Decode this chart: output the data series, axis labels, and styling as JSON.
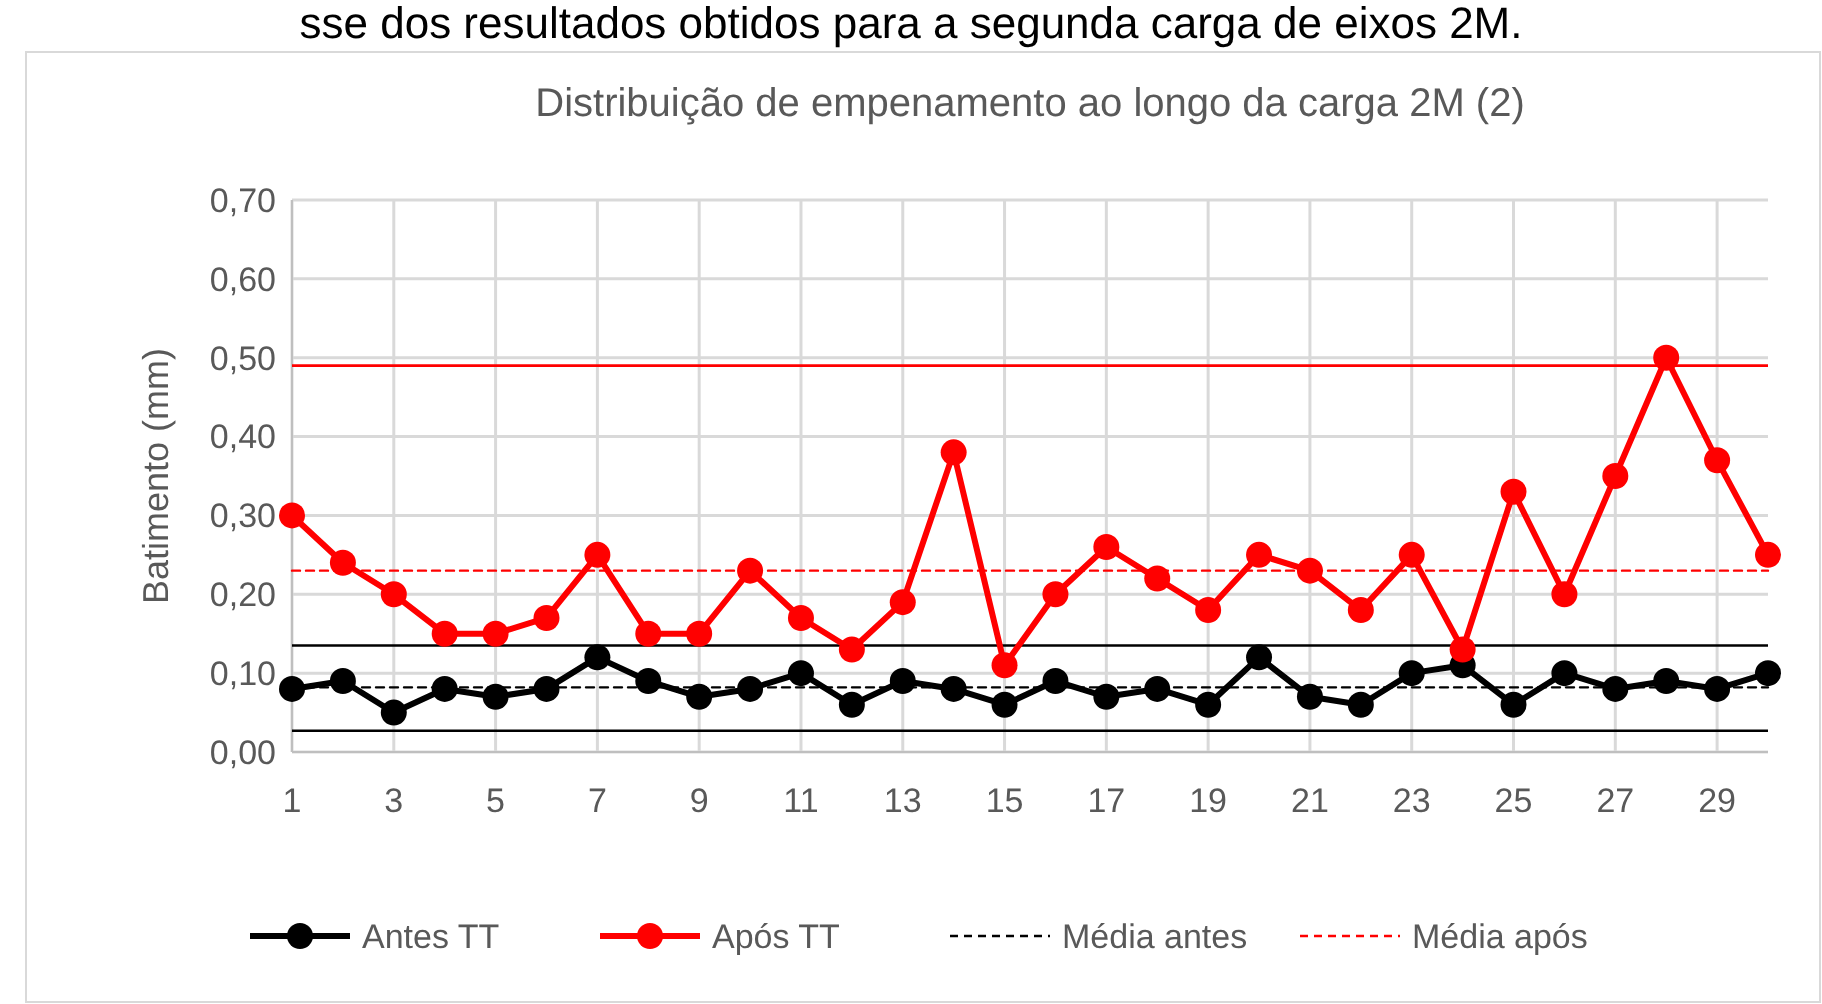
{
  "chart_data": {
    "type": "line",
    "title": "Distribuição de empenamento ao longo da carga 2M (2)",
    "ylabel": "Batimento (mm)",
    "annotations": [
      "sse dos resultados obtidos para a segunda carga de eixos 2M."
    ],
    "x": [
      1,
      2,
      3,
      4,
      5,
      6,
      7,
      8,
      9,
      10,
      11,
      12,
      13,
      14,
      15,
      16,
      17,
      18,
      19,
      20,
      21,
      22,
      23,
      24,
      25,
      26,
      27,
      28,
      29,
      30
    ],
    "series": [
      {
        "name": "Antes TT",
        "color": "#000000",
        "marker": "circle",
        "line_style": "solid",
        "values": [
          0.08,
          0.09,
          0.05,
          0.08,
          0.07,
          0.08,
          0.12,
          0.09,
          0.07,
          0.08,
          0.1,
          0.06,
          0.09,
          0.08,
          0.06,
          0.09,
          0.07,
          0.08,
          0.06,
          0.12,
          0.07,
          0.06,
          0.1,
          0.11,
          0.06,
          0.1,
          0.08,
          0.09,
          0.08,
          0.1
        ]
      },
      {
        "name": "Após TT",
        "color": "#ff0000",
        "marker": "circle",
        "line_style": "solid",
        "values": [
          0.3,
          0.24,
          0.2,
          0.15,
          0.15,
          0.17,
          0.25,
          0.15,
          0.15,
          0.23,
          0.17,
          0.13,
          0.19,
          0.38,
          0.11,
          0.2,
          0.26,
          0.22,
          0.18,
          0.25,
          0.23,
          0.18,
          0.25,
          0.13,
          0.33,
          0.2,
          0.35,
          0.5,
          0.37,
          0.25
        ]
      },
      {
        "name": "Média antes",
        "color": "#000000",
        "marker": "none",
        "line_style": "dashed",
        "values": [
          0.082,
          0.082,
          0.082,
          0.082,
          0.082,
          0.082,
          0.082,
          0.082,
          0.082,
          0.082,
          0.082,
          0.082,
          0.082,
          0.082,
          0.082,
          0.082,
          0.082,
          0.082,
          0.082,
          0.082,
          0.082,
          0.082,
          0.082,
          0.082,
          0.082,
          0.082,
          0.082,
          0.082,
          0.082,
          0.082
        ]
      },
      {
        "name": "Média após",
        "color": "#ff0000",
        "marker": "none",
        "line_style": "dashed",
        "values": [
          0.23,
          0.23,
          0.23,
          0.23,
          0.23,
          0.23,
          0.23,
          0.23,
          0.23,
          0.23,
          0.23,
          0.23,
          0.23,
          0.23,
          0.23,
          0.23,
          0.23,
          0.23,
          0.23,
          0.23,
          0.23,
          0.23,
          0.23,
          0.23,
          0.23,
          0.23,
          0.23,
          0.23,
          0.23,
          0.23
        ]
      }
    ],
    "ref_lines": [
      {
        "axis": "y",
        "value": 0.49,
        "color": "#ff0000"
      },
      {
        "axis": "y",
        "value": 0.135,
        "color": "#000000"
      },
      {
        "axis": "y",
        "value": 0.027,
        "color": "#000000"
      }
    ],
    "xlim": [
      1,
      30
    ],
    "xticks": [
      1,
      3,
      5,
      7,
      9,
      11,
      13,
      15,
      17,
      19,
      21,
      23,
      25,
      27,
      29
    ],
    "ylim": [
      0,
      0.7
    ],
    "yticks": [
      {
        "value": 0,
        "label": "0,00"
      },
      {
        "value": 0.1,
        "label": "0,10"
      },
      {
        "value": 0.2,
        "label": "0,20"
      },
      {
        "value": 0.3,
        "label": "0,30"
      },
      {
        "value": 0.4,
        "label": "0,40"
      },
      {
        "value": 0.5,
        "label": "0,50"
      },
      {
        "value": 0.6,
        "label": "0,60"
      },
      {
        "value": 0.7,
        "label": "0,70"
      }
    ],
    "grid": true,
    "legend": "bottom"
  }
}
